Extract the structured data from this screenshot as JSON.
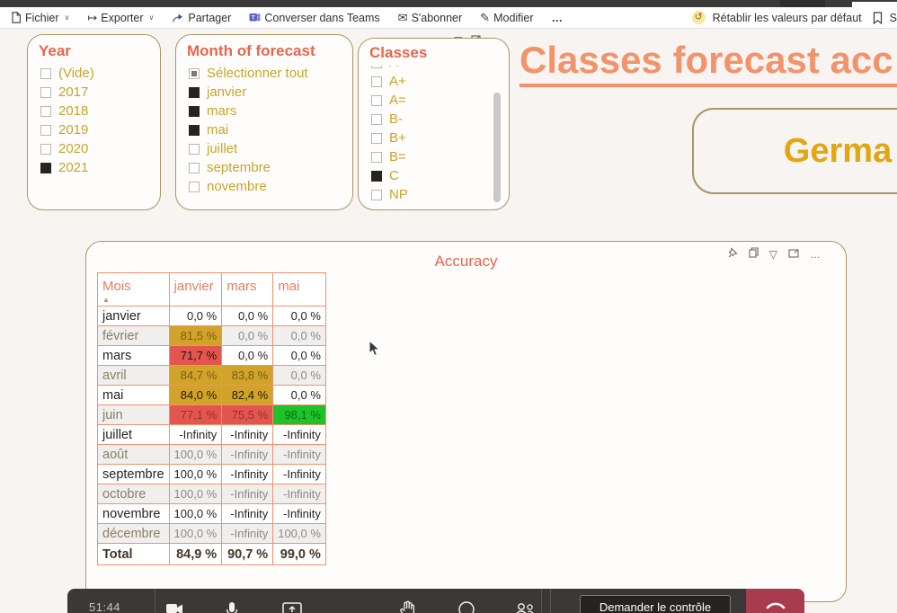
{
  "toolbar": {
    "items": [
      {
        "label": "Fichier",
        "chevron": true
      },
      {
        "label": "Exporter",
        "chevron": true
      },
      {
        "label": "Partager",
        "chevron": false
      },
      {
        "label": "Converser dans Teams",
        "chevron": false
      },
      {
        "label": "S'abonner",
        "chevron": false
      },
      {
        "label": "Modifier",
        "chevron": false
      },
      {
        "label": "…",
        "chevron": false
      }
    ],
    "reset_label": "Rétablir les valeurs par défaut",
    "bookmark_label": "S"
  },
  "slicers": {
    "year": {
      "title": "Year",
      "items": [
        {
          "label": "(Vide)",
          "state": "unchecked"
        },
        {
          "label": "2017",
          "state": "unchecked"
        },
        {
          "label": "2018",
          "state": "unchecked"
        },
        {
          "label": "2019",
          "state": "unchecked"
        },
        {
          "label": "2020",
          "state": "unchecked"
        },
        {
          "label": "2021",
          "state": "checked"
        }
      ]
    },
    "month": {
      "title": "Month of forecast",
      "items": [
        {
          "label": "Sélectionner tout",
          "state": "partial"
        },
        {
          "label": "janvier",
          "state": "checked"
        },
        {
          "label": "mars",
          "state": "checked"
        },
        {
          "label": "mai",
          "state": "checked"
        },
        {
          "label": "juillet",
          "state": "unchecked"
        },
        {
          "label": "septembre",
          "state": "unchecked"
        },
        {
          "label": "novembre",
          "state": "unchecked"
        }
      ]
    },
    "classes": {
      "title": "Classes",
      "first_clipped": true,
      "items": [
        {
          "label": "A",
          "state": "unchecked"
        },
        {
          "label": "A+",
          "state": "unchecked"
        },
        {
          "label": "A=",
          "state": "unchecked"
        },
        {
          "label": "B-",
          "state": "unchecked"
        },
        {
          "label": "B+",
          "state": "unchecked"
        },
        {
          "label": "B=",
          "state": "unchecked"
        },
        {
          "label": "C",
          "state": "checked"
        },
        {
          "label": "NP",
          "state": "unchecked"
        }
      ]
    }
  },
  "page": {
    "title": "Classes forecast acc",
    "country": "Germa"
  },
  "accuracy": {
    "title": "Accuracy",
    "columns": [
      "Mois",
      "janvier",
      "mars",
      "mai"
    ],
    "rows": [
      {
        "label": "janvier",
        "values": [
          "0,0 %",
          "0,0 %",
          "0,0 %"
        ],
        "bg": [
          "",
          "",
          ""
        ]
      },
      {
        "label": "février",
        "values": [
          "81,5 %",
          "0,0 %",
          "0,0 %"
        ],
        "bg": [
          "y",
          "",
          ""
        ]
      },
      {
        "label": "mars",
        "values": [
          "71,7 %",
          "0,0 %",
          "0,0 %"
        ],
        "bg": [
          "r",
          "",
          ""
        ]
      },
      {
        "label": "avril",
        "values": [
          "84,7 %",
          "83,8 %",
          "0,0 %"
        ],
        "bg": [
          "y",
          "y",
          ""
        ]
      },
      {
        "label": "mai",
        "values": [
          "84,0 %",
          "82,4 %",
          "0,0 %"
        ],
        "bg": [
          "y",
          "y",
          ""
        ]
      },
      {
        "label": "juin",
        "values": [
          "77,1 %",
          "75,5 %",
          "98,1 %"
        ],
        "bg": [
          "r",
          "r",
          "g"
        ]
      },
      {
        "label": "juillet",
        "values": [
          "-Infinity",
          "-Infinity",
          "-Infinity"
        ],
        "bg": [
          "",
          "",
          ""
        ]
      },
      {
        "label": "août",
        "values": [
          "100,0 %",
          "-Infinity",
          "-Infinity"
        ],
        "bg": [
          "",
          "",
          ""
        ]
      },
      {
        "label": "septembre",
        "values": [
          "100,0 %",
          "-Infinity",
          "-Infinity"
        ],
        "bg": [
          "",
          "",
          ""
        ]
      },
      {
        "label": "octobre",
        "values": [
          "100,0 %",
          "-Infinity",
          "-Infinity"
        ],
        "bg": [
          "",
          "",
          ""
        ]
      },
      {
        "label": "novembre",
        "values": [
          "100,0 %",
          "-Infinity",
          "-Infinity"
        ],
        "bg": [
          "",
          "",
          ""
        ]
      },
      {
        "label": "décembre",
        "values": [
          "100,0 %",
          "-Infinity",
          "100,0 %"
        ],
        "bg": [
          "",
          "",
          ""
        ]
      },
      {
        "label": "Total",
        "values": [
          "84,9 %",
          "90,7 %",
          "99,0 %"
        ],
        "bg": [
          "",
          "",
          ""
        ],
        "total": true
      }
    ]
  },
  "teams_bar": {
    "timer": "51:44",
    "control_button": "Demander le contrôle"
  },
  "colors": {
    "accent_salmon": "#ed7c5b",
    "title_salmon": "#f2936b",
    "slicer_gold": "#c7a42b",
    "card_border": "#a99763",
    "cell_yellow": "#d2a32a",
    "cell_red": "#e2564f",
    "cell_green": "#1ec32b",
    "teams_purple": "#5b5fc7",
    "leave_red": "#a83b50",
    "reset_yellow": "#f9e7a0"
  }
}
